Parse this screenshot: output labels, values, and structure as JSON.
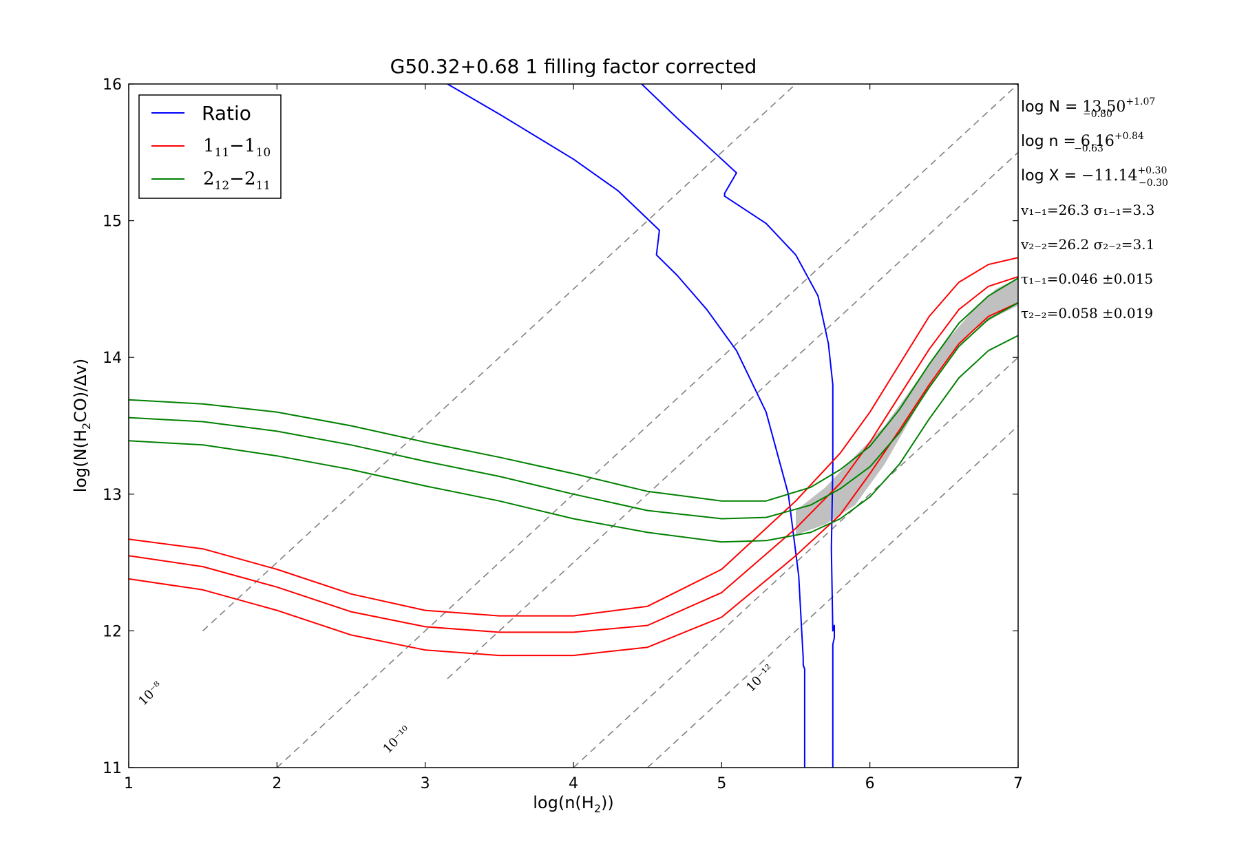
{
  "chart_data": {
    "type": "line",
    "title": "G50.32+0.68 1 filling factor corrected",
    "xlabel": "log(n(H",
    "xlabel_sub": "2",
    "xlabel_end": "))",
    "ylabel": "log(N(H",
    "ylabel_sub": "2",
    "ylabel_end": "CO)/Δv)",
    "xlim": [
      1,
      7
    ],
    "ylim": [
      11,
      16
    ],
    "xticks": [
      "1",
      "2",
      "3",
      "4",
      "5",
      "6",
      "7"
    ],
    "yticks": [
      "11",
      "12",
      "13",
      "14",
      "15",
      "16"
    ],
    "colors": {
      "ratio": "#0000ff",
      "line_1_1": "#ff0000",
      "line_2_2": "#008000",
      "iso": "#808080",
      "band": "#c0c0c0"
    },
    "legend": {
      "position": "top-left",
      "entries": [
        {
          "label": "Ratio",
          "color": "#0000ff"
        },
        {
          "label": "1",
          "sub1": "11",
          "mid": "−1",
          "sub2": "10",
          "color": "#ff0000"
        },
        {
          "label": "2",
          "sub1": "12",
          "mid": "−2",
          "sub2": "11",
          "color": "#008000"
        }
      ]
    },
    "annotations": [
      {
        "pre": "log N = ",
        "val": "13.50",
        "up": "+1.07",
        "dn": "−0.80"
      },
      {
        "pre": "log n = ",
        "val": "6.16",
        "up": "+0.84",
        "dn": "−0.63"
      },
      {
        "pre": "log X = ",
        "val": "−11.14",
        "up": "+0.30",
        "dn": "−0.30"
      },
      {
        "text": "v₁₋₁=26.3   σ₁₋₁=3.3"
      },
      {
        "text": "v₂₋₂=26.2   σ₂₋₂=3.1"
      },
      {
        "text": "τ₁₋₁=0.046 ±0.015"
      },
      {
        "text": "τ₂₋₂=0.058 ±0.019"
      }
    ],
    "abundance_lines": [
      {
        "label": "10⁻⁸",
        "offset": 8,
        "from": [
          1.5,
          12.0
        ],
        "to": [
          7.0,
          17.5
        ]
      },
      {
        "label": "10⁻¹⁰",
        "offset": 10,
        "from": [
          3.15,
          11.65
        ],
        "to": [
          7.0,
          15.5
        ]
      },
      {
        "label": "10⁻¹²",
        "offset": 12,
        "from": [
          4.5,
          11.0
        ],
        "to": [
          7.0,
          13.5
        ]
      },
      {
        "label": "",
        "offset": 9,
        "from": [
          2.0,
          11.0
        ],
        "to": [
          7.0,
          16.0
        ]
      },
      {
        "label": "",
        "offset": 11,
        "from": [
          4.0,
          11.0
        ],
        "to": [
          7.0,
          14.0
        ]
      }
    ],
    "series": [
      {
        "name": "Ratio",
        "key": "ratio",
        "x": [
          3.15,
          3.5,
          4.0,
          4.3,
          4.58,
          4.58,
          4.56,
          4.7,
          4.9,
          5.1,
          5.3,
          5.45,
          5.52,
          5.54,
          5.55,
          5.55,
          5.56,
          5.56
        ],
        "y": [
          16.0,
          15.78,
          15.45,
          15.22,
          14.93,
          14.93,
          14.75,
          14.6,
          14.35,
          14.05,
          13.6,
          13.0,
          12.4,
          12.0,
          11.8,
          11.75,
          11.72,
          11.0
        ]
      },
      {
        "name": "Ratio",
        "key": "ratio",
        "x": [
          4.46,
          4.7,
          4.95,
          5.1,
          5.02,
          5.02,
          5.3,
          5.5,
          5.65,
          5.72,
          5.75,
          5.75,
          5.74,
          5.75,
          5.76,
          5.76,
          5.75,
          5.75
        ],
        "y": [
          16.0,
          15.75,
          15.5,
          15.35,
          15.2,
          15.18,
          14.98,
          14.75,
          14.45,
          14.1,
          13.8,
          13.2,
          12.6,
          12.0,
          12.04,
          11.95,
          11.9,
          11.0
        ]
      },
      {
        "name": "1_11-1_10",
        "key": "line_1_1",
        "x": [
          1.0,
          1.5,
          2.0,
          2.5,
          3.0,
          3.5,
          4.0,
          4.5,
          5.0,
          5.5,
          5.8,
          6.0,
          6.2,
          6.4,
          6.6,
          6.8,
          7.0
        ],
        "y": [
          12.67,
          12.6,
          12.45,
          12.27,
          12.15,
          12.11,
          12.11,
          12.18,
          12.45,
          12.95,
          13.3,
          13.6,
          13.95,
          14.3,
          14.55,
          14.68,
          14.73
        ]
      },
      {
        "name": "1_11-1_10",
        "key": "line_1_1",
        "x": [
          1.0,
          1.5,
          2.0,
          2.5,
          3.0,
          3.5,
          4.0,
          4.5,
          5.0,
          5.5,
          5.8,
          6.0,
          6.2,
          6.4,
          6.6,
          6.8,
          7.0
        ],
        "y": [
          12.55,
          12.47,
          12.32,
          12.14,
          12.03,
          11.99,
          11.99,
          12.04,
          12.28,
          12.75,
          13.08,
          13.38,
          13.72,
          14.06,
          14.35,
          14.52,
          14.59
        ]
      },
      {
        "name": "1_11-1_10",
        "key": "line_1_1",
        "x": [
          1.0,
          1.5,
          2.0,
          2.5,
          3.0,
          3.5,
          4.0,
          4.5,
          5.0,
          5.5,
          5.8,
          6.0,
          6.2,
          6.4,
          6.6,
          6.8,
          7.0
        ],
        "y": [
          12.38,
          12.3,
          12.15,
          11.97,
          11.86,
          11.82,
          11.82,
          11.88,
          12.1,
          12.55,
          12.85,
          13.15,
          13.47,
          13.8,
          14.1,
          14.3,
          14.4
        ]
      },
      {
        "name": "2_12-2_11",
        "key": "line_2_2",
        "x": [
          1.0,
          1.5,
          2.0,
          2.5,
          3.0,
          3.5,
          4.0,
          4.5,
          5.0,
          5.3,
          5.6,
          5.8,
          6.0,
          6.2,
          6.4,
          6.6,
          6.8,
          7.0
        ],
        "y": [
          13.69,
          13.66,
          13.6,
          13.5,
          13.38,
          13.27,
          13.15,
          13.02,
          12.95,
          12.95,
          13.05,
          13.18,
          13.35,
          13.62,
          13.95,
          14.25,
          14.45,
          14.58
        ]
      },
      {
        "name": "2_12-2_11",
        "key": "line_2_2",
        "x": [
          1.0,
          1.5,
          2.0,
          2.5,
          3.0,
          3.5,
          4.0,
          4.5,
          5.0,
          5.3,
          5.6,
          5.8,
          6.0,
          6.2,
          6.4,
          6.6,
          6.8,
          7.0
        ],
        "y": [
          13.56,
          13.53,
          13.46,
          13.36,
          13.24,
          13.13,
          13.0,
          12.88,
          12.82,
          12.83,
          12.92,
          13.04,
          13.2,
          13.45,
          13.78,
          14.08,
          14.28,
          14.4
        ]
      },
      {
        "name": "2_12-2_11",
        "key": "line_2_2",
        "x": [
          1.0,
          1.5,
          2.0,
          2.5,
          3.0,
          3.5,
          4.0,
          4.5,
          5.0,
          5.3,
          5.6,
          5.8,
          6.0,
          6.2,
          6.4,
          6.6,
          6.8,
          7.0
        ],
        "y": [
          13.39,
          13.36,
          13.28,
          13.18,
          13.06,
          12.95,
          12.82,
          12.72,
          12.65,
          12.66,
          12.72,
          12.82,
          12.98,
          13.22,
          13.55,
          13.85,
          14.05,
          14.16
        ]
      }
    ],
    "band": {
      "key": "band",
      "upper_x": [
        5.5,
        5.7,
        5.9,
        6.1,
        6.3,
        6.5,
        6.7,
        6.85,
        7.0
      ],
      "upper_y": [
        12.88,
        13.05,
        13.28,
        13.5,
        13.8,
        14.1,
        14.35,
        14.5,
        14.58
      ],
      "lower_x": [
        7.0,
        6.85,
        6.7,
        6.5,
        6.3,
        6.1,
        5.9,
        5.7,
        5.5
      ],
      "lower_y": [
        14.38,
        14.3,
        14.2,
        13.96,
        13.6,
        13.22,
        12.92,
        12.78,
        12.7
      ]
    }
  }
}
